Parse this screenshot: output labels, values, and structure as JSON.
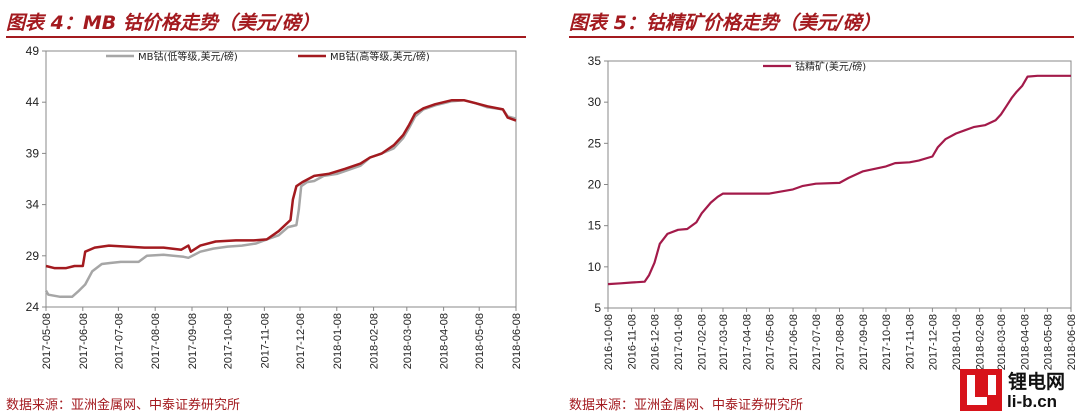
{
  "left": {
    "title": "图表 4：MB 钴价格走势（美元/磅）",
    "source": "数据来源：亚洲金属网、中泰证券研究所"
  },
  "right": {
    "title": "图表 5：钴精矿价格走势（美元/磅）",
    "source": "数据来源：亚洲金属网、中泰证券研究所"
  },
  "watermark": {
    "cn": "锂电网",
    "en": "li-b.cn"
  },
  "chart_data": [
    {
      "type": "line",
      "title": "",
      "xlabel": "",
      "ylabel": "",
      "ylim": [
        24,
        49
      ],
      "yticks": [
        24,
        29,
        34,
        39,
        44,
        49
      ],
      "xticks": [
        "2017-05-08",
        "2017-06-08",
        "2017-07-08",
        "2017-08-08",
        "2017-09-08",
        "2017-10-08",
        "2017-11-08",
        "2017-12-08",
        "2018-01-08",
        "2018-02-08",
        "2018-03-08",
        "2018-04-08",
        "2018-05-08",
        "2018-06-08"
      ],
      "xlim": [
        "2017-05-08",
        "2018-06-08"
      ],
      "grid": false,
      "legend": "top",
      "colors": {
        "low": "#a6a6a6",
        "high": "#a31a1f"
      },
      "series": [
        {
          "name": "MB钴(低等级,美元/磅)",
          "points": [
            [
              "2017-05-08",
              25.6
            ],
            [
              "2017-05-10",
              25.2
            ],
            [
              "2017-05-20",
              25.0
            ],
            [
              "2017-05-30",
              25.0
            ],
            [
              "2017-06-04",
              25.5
            ],
            [
              "2017-06-10",
              26.2
            ],
            [
              "2017-06-16",
              27.5
            ],
            [
              "2017-06-24",
              28.2
            ],
            [
              "2017-07-01",
              28.3
            ],
            [
              "2017-07-10",
              28.4
            ],
            [
              "2017-07-25",
              28.4
            ],
            [
              "2017-08-01",
              29.0
            ],
            [
              "2017-08-15",
              29.1
            ],
            [
              "2017-09-01",
              28.9
            ],
            [
              "2017-09-05",
              28.8
            ],
            [
              "2017-09-15",
              29.4
            ],
            [
              "2017-09-26",
              29.7
            ],
            [
              "2017-10-08",
              29.9
            ],
            [
              "2017-10-20",
              30.0
            ],
            [
              "2017-11-01",
              30.2
            ],
            [
              "2017-11-10",
              30.6
            ],
            [
              "2017-11-20",
              31.0
            ],
            [
              "2017-11-28",
              31.8
            ],
            [
              "2017-12-05",
              32.0
            ],
            [
              "2017-12-07",
              33.5
            ],
            [
              "2017-12-09",
              35.8
            ],
            [
              "2017-12-14",
              36.2
            ],
            [
              "2017-12-20",
              36.3
            ],
            [
              "2017-12-28",
              36.8
            ],
            [
              "2018-01-08",
              37.0
            ],
            [
              "2018-01-18",
              37.4
            ],
            [
              "2018-01-28",
              37.8
            ],
            [
              "2018-02-05",
              38.6
            ],
            [
              "2018-02-15",
              39.0
            ],
            [
              "2018-02-25",
              39.5
            ],
            [
              "2018-03-05",
              40.5
            ],
            [
              "2018-03-10",
              41.5
            ],
            [
              "2018-03-15",
              42.6
            ],
            [
              "2018-03-22",
              43.3
            ],
            [
              "2018-04-01",
              43.7
            ],
            [
              "2018-04-15",
              44.1
            ],
            [
              "2018-04-25",
              44.2
            ],
            [
              "2018-05-05",
              43.9
            ],
            [
              "2018-05-15",
              43.5
            ],
            [
              "2018-05-28",
              43.3
            ],
            [
              "2018-06-01",
              42.6
            ],
            [
              "2018-06-08",
              42.4
            ]
          ]
        },
        {
          "name": "MB钴(高等级,美元/磅)",
          "points": [
            [
              "2017-05-08",
              28.0
            ],
            [
              "2017-05-15",
              27.8
            ],
            [
              "2017-05-25",
              27.8
            ],
            [
              "2017-06-01",
              28.0
            ],
            [
              "2017-06-08",
              28.0
            ],
            [
              "2017-06-10",
              29.4
            ],
            [
              "2017-06-18",
              29.8
            ],
            [
              "2017-06-30",
              30.0
            ],
            [
              "2017-07-15",
              29.9
            ],
            [
              "2017-07-30",
              29.8
            ],
            [
              "2017-08-15",
              29.8
            ],
            [
              "2017-08-30",
              29.6
            ],
            [
              "2017-09-05",
              30.0
            ],
            [
              "2017-09-07",
              29.4
            ],
            [
              "2017-09-15",
              30.0
            ],
            [
              "2017-09-28",
              30.4
            ],
            [
              "2017-10-15",
              30.5
            ],
            [
              "2017-10-30",
              30.5
            ],
            [
              "2017-11-10",
              30.6
            ],
            [
              "2017-11-20",
              31.4
            ],
            [
              "2017-11-30",
              32.5
            ],
            [
              "2017-12-02",
              34.5
            ],
            [
              "2017-12-05",
              35.8
            ],
            [
              "2017-12-10",
              36.2
            ],
            [
              "2017-12-20",
              36.8
            ],
            [
              "2018-01-01",
              37.0
            ],
            [
              "2018-01-15",
              37.5
            ],
            [
              "2018-01-28",
              38.0
            ],
            [
              "2018-02-05",
              38.6
            ],
            [
              "2018-02-15",
              39.0
            ],
            [
              "2018-02-25",
              39.8
            ],
            [
              "2018-03-05",
              40.8
            ],
            [
              "2018-03-10",
              41.8
            ],
            [
              "2018-03-15",
              42.9
            ],
            [
              "2018-03-22",
              43.4
            ],
            [
              "2018-04-01",
              43.8
            ],
            [
              "2018-04-15",
              44.2
            ],
            [
              "2018-04-25",
              44.2
            ],
            [
              "2018-05-05",
              43.9
            ],
            [
              "2018-05-15",
              43.6
            ],
            [
              "2018-05-28",
              43.3
            ],
            [
              "2018-06-01",
              42.5
            ],
            [
              "2018-06-08",
              42.2
            ]
          ]
        }
      ]
    },
    {
      "type": "line",
      "title": "",
      "xlabel": "",
      "ylabel": "",
      "ylim": [
        5,
        35
      ],
      "yticks": [
        5,
        10,
        15,
        20,
        25,
        30,
        35
      ],
      "xticks": [
        "2016-10-08",
        "2016-11-08",
        "2016-12-08",
        "2017-01-08",
        "2017-02-08",
        "2017-03-08",
        "2017-04-08",
        "2017-05-08",
        "2017-06-08",
        "2017-07-08",
        "2017-08-08",
        "2017-09-08",
        "2017-10-08",
        "2017-11-08",
        "2017-12-08",
        "2018-01-08",
        "2018-02-08",
        "2018-03-08",
        "2018-04-08",
        "2018-05-08",
        "2018-06-08"
      ],
      "xlim": [
        "2016-10-08",
        "2018-06-08"
      ],
      "grid": false,
      "legend": "top",
      "colors": {
        "main": "#a31a4a"
      },
      "series": [
        {
          "name": "钴精矿(美元/磅)",
          "points": [
            [
              "2016-10-08",
              7.9
            ],
            [
              "2016-10-25",
              8.0
            ],
            [
              "2016-11-08",
              8.1
            ],
            [
              "2016-11-25",
              8.2
            ],
            [
              "2016-12-01",
              9.0
            ],
            [
              "2016-12-08",
              10.5
            ],
            [
              "2016-12-15",
              12.8
            ],
            [
              "2016-12-25",
              14.0
            ],
            [
              "2017-01-08",
              14.5
            ],
            [
              "2017-01-20",
              14.6
            ],
            [
              "2017-02-01",
              15.4
            ],
            [
              "2017-02-08",
              16.5
            ],
            [
              "2017-02-20",
              17.8
            ],
            [
              "2017-03-01",
              18.5
            ],
            [
              "2017-03-08",
              18.9
            ],
            [
              "2017-04-08",
              18.9
            ],
            [
              "2017-05-08",
              18.9
            ],
            [
              "2017-05-20",
              19.1
            ],
            [
              "2017-06-08",
              19.4
            ],
            [
              "2017-06-20",
              19.8
            ],
            [
              "2017-07-08",
              20.1
            ],
            [
              "2017-08-08",
              20.2
            ],
            [
              "2017-08-20",
              20.8
            ],
            [
              "2017-09-08",
              21.6
            ],
            [
              "2017-10-08",
              22.2
            ],
            [
              "2017-10-20",
              22.6
            ],
            [
              "2017-11-08",
              22.7
            ],
            [
              "2017-11-20",
              22.9
            ],
            [
              "2017-12-08",
              23.4
            ],
            [
              "2017-12-15",
              24.5
            ],
            [
              "2017-12-25",
              25.5
            ],
            [
              "2018-01-08",
              26.2
            ],
            [
              "2018-01-20",
              26.6
            ],
            [
              "2018-02-01",
              27.0
            ],
            [
              "2018-02-15",
              27.2
            ],
            [
              "2018-03-01",
              27.8
            ],
            [
              "2018-03-08",
              28.5
            ],
            [
              "2018-03-15",
              29.5
            ],
            [
              "2018-03-22",
              30.5
            ],
            [
              "2018-03-28",
              31.2
            ],
            [
              "2018-04-05",
              32.0
            ],
            [
              "2018-04-12",
              33.1
            ],
            [
              "2018-04-25",
              33.2
            ],
            [
              "2018-05-20",
              33.2
            ],
            [
              "2018-06-08",
              33.2
            ]
          ]
        }
      ]
    }
  ]
}
